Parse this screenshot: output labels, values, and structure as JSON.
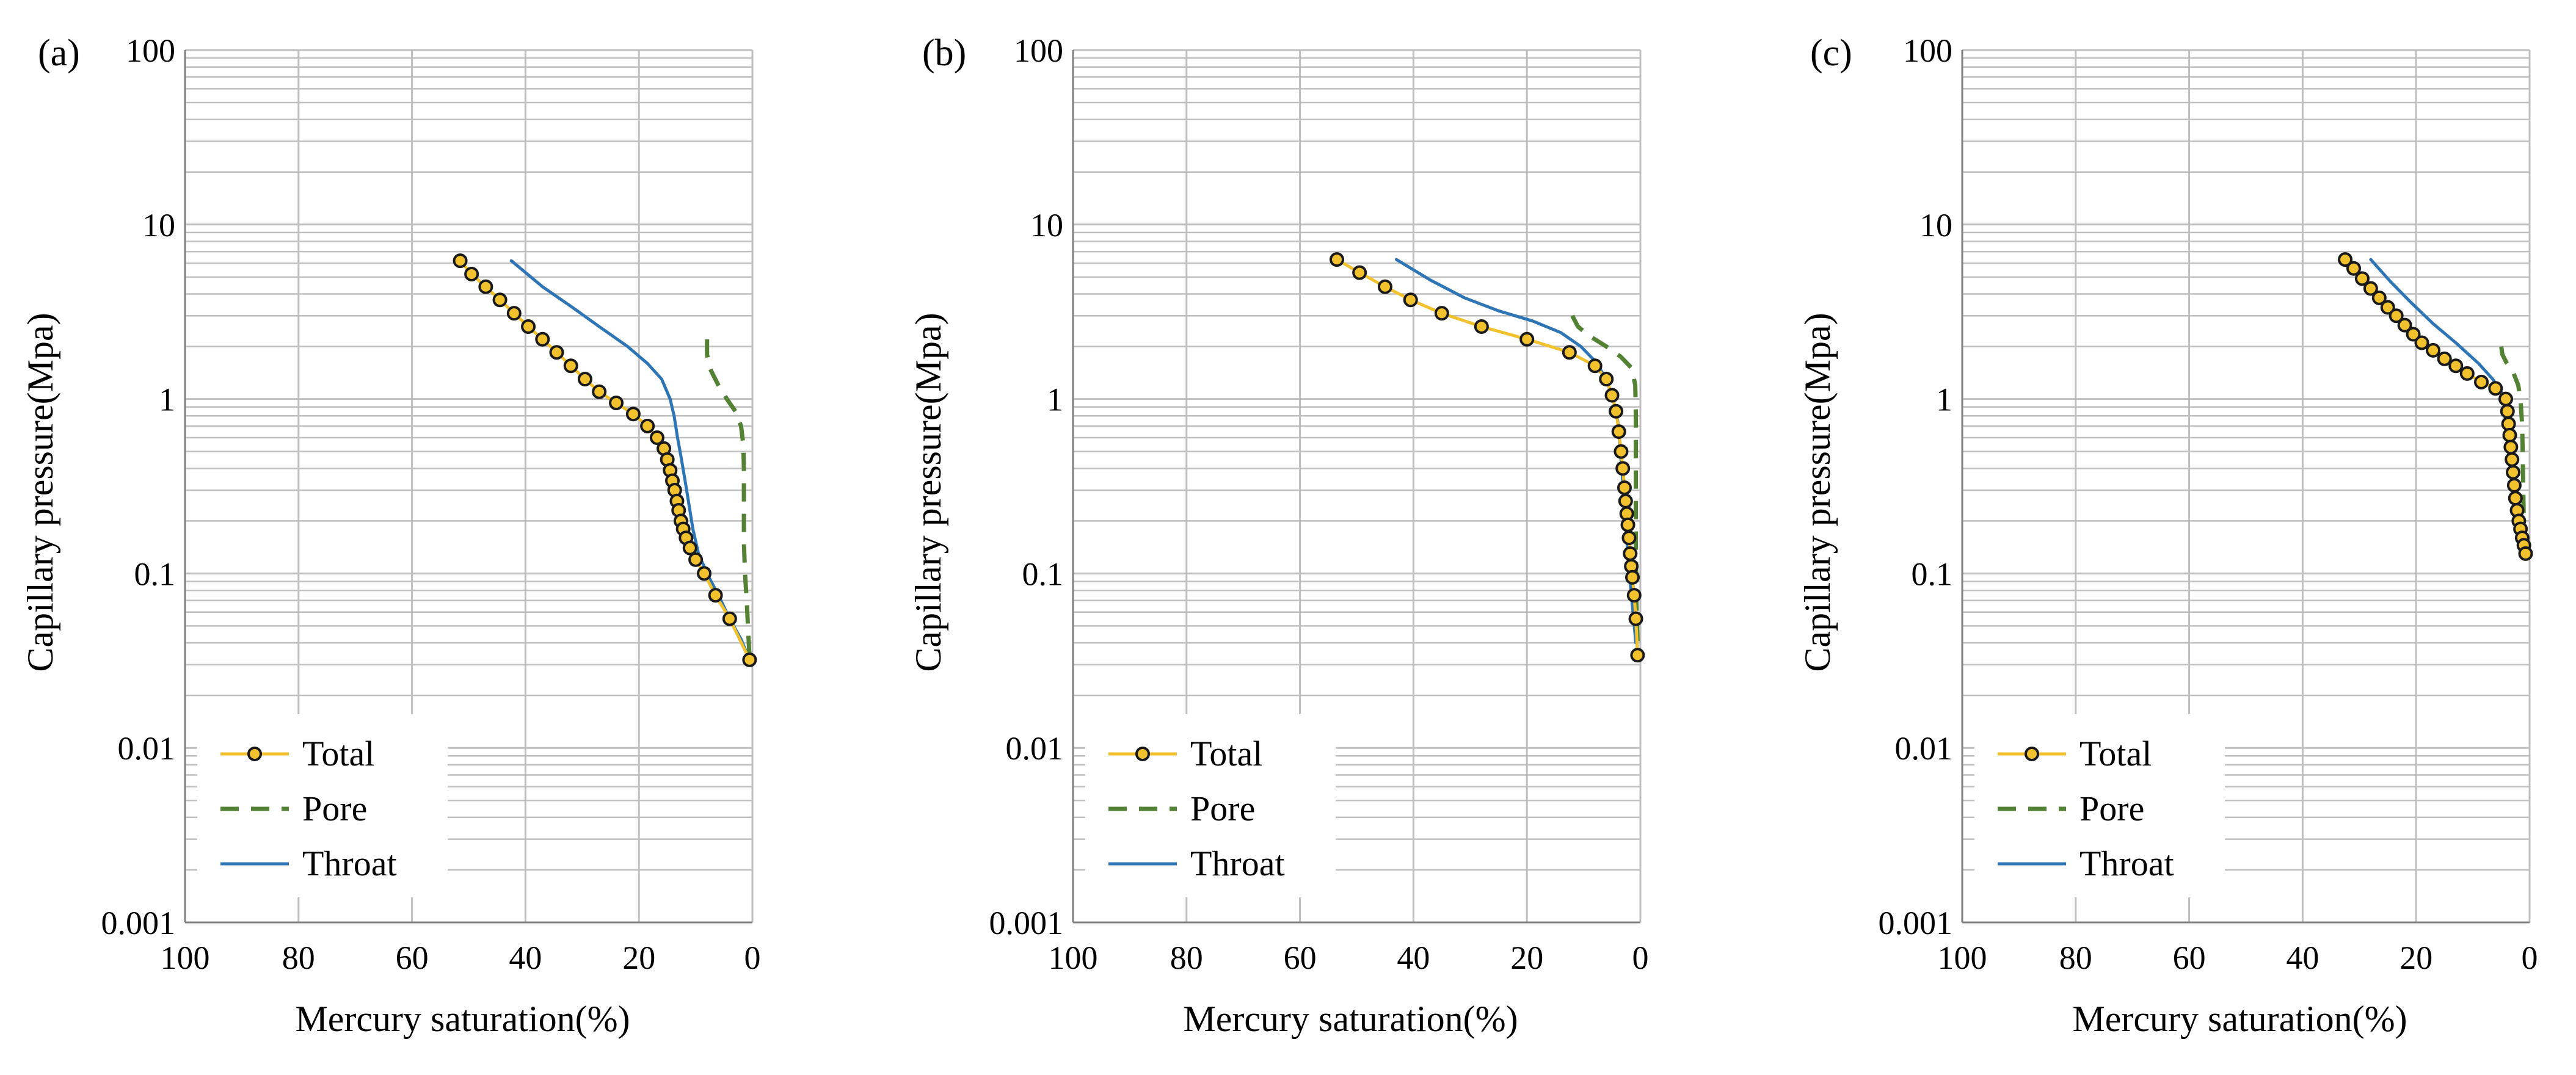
{
  "colors": {
    "total": "#F2C12E",
    "pore": "#548235",
    "throat": "#2E75B6",
    "grid": "#BFBFBF",
    "marker_stroke": "#1A1A1A"
  },
  "chart_data": [
    {
      "type": "line",
      "panel_label": "(a)",
      "xlabel": "Mercury saturation(%)",
      "ylabel": "Capillary pressure(Mpa)",
      "xlim": [
        100,
        0
      ],
      "x_reversed": true,
      "ylim": [
        0.001,
        100
      ],
      "y_scale": "log",
      "x_ticks": [
        "100",
        "80",
        "60",
        "40",
        "20",
        "0"
      ],
      "y_ticks": [
        "100",
        "10",
        "1",
        "0.1",
        "0.01",
        "0.001"
      ],
      "grid": true,
      "legend_position": "bottom-left",
      "series": [
        {
          "name": "Total",
          "style": "line-markers",
          "x": [
            51.5,
            49.5,
            47,
            44.5,
            42,
            39.5,
            37,
            34.5,
            32,
            29.5,
            27,
            24,
            21,
            18.5,
            16.8,
            15.6,
            15,
            14.5,
            14.1,
            13.7,
            13.3,
            13,
            12.6,
            12.2,
            11.7,
            11,
            10,
            8.5,
            6.5,
            4,
            0.5
          ],
          "y": [
            6.2,
            5.2,
            4.4,
            3.7,
            3.1,
            2.6,
            2.2,
            1.85,
            1.55,
            1.3,
            1.1,
            0.95,
            0.82,
            0.7,
            0.6,
            0.52,
            0.45,
            0.39,
            0.34,
            0.3,
            0.26,
            0.23,
            0.2,
            0.18,
            0.16,
            0.14,
            0.12,
            0.1,
            0.075,
            0.055,
            0.032
          ]
        },
        {
          "name": "Pore",
          "style": "dashed",
          "x": [
            8,
            8,
            7.5,
            6,
            4.5,
            3,
            2,
            1.6,
            1.5,
            1.5,
            1.5,
            1.3,
            1,
            0.5
          ],
          "y": [
            2.2,
            1.8,
            1.5,
            1.2,
            1.0,
            0.85,
            0.7,
            0.55,
            0.4,
            0.25,
            0.15,
            0.1,
            0.07,
            0.032
          ]
        },
        {
          "name": "Throat",
          "style": "line",
          "x": [
            42.5,
            37,
            32,
            27,
            22,
            18.5,
            16,
            14.5,
            13.8,
            13.2,
            12.5,
            11.8,
            11.2,
            10.5,
            9.5,
            8,
            6,
            4,
            2,
            0.5
          ],
          "y": [
            6.2,
            4.4,
            3.4,
            2.6,
            2.0,
            1.6,
            1.3,
            1.0,
            0.8,
            0.6,
            0.45,
            0.33,
            0.25,
            0.18,
            0.13,
            0.1,
            0.075,
            0.055,
            0.042,
            0.032
          ]
        }
      ]
    },
    {
      "type": "line",
      "panel_label": "(b)",
      "xlabel": "Mercury saturation(%)",
      "ylabel": "Capillary pressure(Mpa)",
      "xlim": [
        100,
        0
      ],
      "x_reversed": true,
      "ylim": [
        0.001,
        100
      ],
      "y_scale": "log",
      "x_ticks": [
        "100",
        "80",
        "60",
        "40",
        "20",
        "0"
      ],
      "y_ticks": [
        "100",
        "10",
        "1",
        "0.1",
        "0.01",
        "0.001"
      ],
      "grid": true,
      "legend_position": "bottom-left",
      "series": [
        {
          "name": "Total",
          "style": "line-markers",
          "x": [
            53.5,
            49.5,
            45,
            40.5,
            35,
            28,
            20,
            12.5,
            8,
            6,
            5,
            4.3,
            3.8,
            3.4,
            3.1,
            2.8,
            2.6,
            2.4,
            2.2,
            2.0,
            1.8,
            1.6,
            1.4,
            1.1,
            0.8,
            0.5
          ],
          "y": [
            6.3,
            5.3,
            4.4,
            3.7,
            3.1,
            2.6,
            2.2,
            1.85,
            1.55,
            1.3,
            1.05,
            0.85,
            0.65,
            0.5,
            0.4,
            0.31,
            0.26,
            0.22,
            0.19,
            0.16,
            0.13,
            0.11,
            0.095,
            0.075,
            0.055,
            0.034
          ]
        },
        {
          "name": "Pore",
          "style": "dashed",
          "x": [
            12,
            11,
            9,
            6,
            3.5,
            1.5,
            0.9,
            0.8,
            0.8,
            0.8,
            0.7,
            0.5
          ],
          "y": [
            3.0,
            2.6,
            2.3,
            2.0,
            1.75,
            1.5,
            1.2,
            0.8,
            0.4,
            0.15,
            0.07,
            0.04
          ]
        },
        {
          "name": "Throat",
          "style": "line",
          "x": [
            43,
            37,
            31,
            25,
            19,
            14,
            10.5,
            8,
            6,
            4.8,
            4,
            3.5,
            3,
            2.6,
            2.2,
            1.8,
            1.3,
            0.8
          ],
          "y": [
            6.3,
            4.8,
            3.8,
            3.2,
            2.8,
            2.4,
            2.0,
            1.65,
            1.3,
            1.0,
            0.75,
            0.5,
            0.3,
            0.2,
            0.13,
            0.09,
            0.06,
            0.04
          ]
        }
      ]
    },
    {
      "type": "line",
      "panel_label": "(c)",
      "xlabel": "Mercury saturation(%)",
      "ylabel": "Capillary pressure(Mpa)",
      "xlim": [
        100,
        0
      ],
      "x_reversed": true,
      "ylim": [
        0.001,
        100
      ],
      "y_scale": "log",
      "x_ticks": [
        "100",
        "80",
        "60",
        "40",
        "20",
        "0"
      ],
      "y_ticks": [
        "100",
        "10",
        "1",
        "0.1",
        "0.01",
        "0.001"
      ],
      "grid": true,
      "legend_position": "bottom-left",
      "series": [
        {
          "name": "Total",
          "style": "line-markers",
          "x": [
            32.5,
            31,
            29.5,
            28,
            26.5,
            25,
            23.5,
            22,
            20.5,
            19,
            17,
            15,
            13,
            11,
            8.5,
            6,
            4.2,
            3.9,
            3.7,
            3.5,
            3.3,
            3.1,
            2.9,
            2.7,
            2.5,
            2.2,
            1.9,
            1.6,
            1.3,
            1.0,
            0.7
          ],
          "y": [
            6.3,
            5.6,
            4.9,
            4.3,
            3.8,
            3.35,
            3.0,
            2.65,
            2.35,
            2.1,
            1.9,
            1.7,
            1.55,
            1.4,
            1.25,
            1.15,
            1.0,
            0.85,
            0.72,
            0.62,
            0.53,
            0.45,
            0.38,
            0.32,
            0.27,
            0.23,
            0.2,
            0.18,
            0.16,
            0.145,
            0.13
          ]
        },
        {
          "name": "Pore",
          "style": "dashed",
          "x": [
            5,
            4.8,
            4,
            2.8,
            2,
            1.6,
            1.3,
            1.2,
            1.1,
            1.0
          ],
          "y": [
            2.0,
            1.8,
            1.6,
            1.4,
            1.2,
            1.0,
            0.7,
            0.45,
            0.28,
            0.18
          ]
        },
        {
          "name": "Throat",
          "style": "line",
          "x": [
            28,
            24.5,
            21,
            17,
            13,
            9,
            6.5,
            5,
            4.3,
            3.8,
            3.3,
            2.8,
            2.3,
            1.8,
            1.2
          ],
          "y": [
            6.3,
            4.7,
            3.6,
            2.7,
            2.1,
            1.6,
            1.3,
            1.1,
            0.9,
            0.7,
            0.5,
            0.35,
            0.25,
            0.18,
            0.14
          ]
        }
      ]
    }
  ]
}
